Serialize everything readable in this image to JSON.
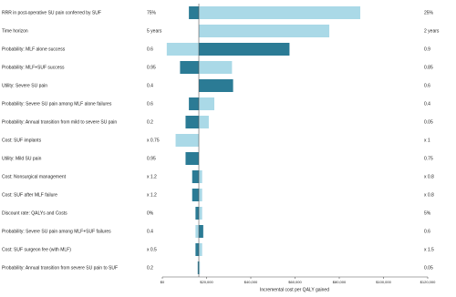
{
  "chart_data": {
    "type": "tornado",
    "x_label": "Incremental cost per QALY gained",
    "categories": [
      "RRR in post-operative SU pain conferred by SUF",
      "Time horizon",
      "Probability: MLF alone success",
      "Probability: MLF+SUF success",
      "Utility: Severe SU pain",
      "Probability: Severe SU pain among MLF alone failures",
      "Probability: Annual transition from mild to severe SU pain",
      "Cost: SUF implants",
      "Utility: Mild SU pain",
      "Cost: Nonsurgical management",
      "Cost: SUF after MLF failure",
      "Discount rate: QALYs and Costs",
      "Probability: Severe SU pain among MLF+SUF failures",
      "Cost: SUF surgeon fee (with MLF)",
      "Probability: Annual transition from severe SU pain to SUF"
    ],
    "low_labels": [
      "75%",
      "5 years",
      "0.6",
      "0.95",
      "0.4",
      "0.6",
      "0.2",
      "x 0.75",
      "0.95",
      "x 1.2",
      "x 1.2",
      "0%",
      "0.4",
      "x 0.5",
      "0.2"
    ],
    "high_labels": [
      "25%",
      "2 years",
      "0.9",
      "0.85",
      "0.6",
      "0.4",
      "0.05",
      "x 1",
      "0.75",
      "x 0.8",
      "x 0.8",
      "5%",
      "0.6",
      "x 1.5",
      "0.05"
    ],
    "low_values": [
      12000,
      16500,
      57500,
      8000,
      32000,
      12000,
      10500,
      16500,
      10500,
      13500,
      13500,
      15000,
      18500,
      15000,
      16000
    ],
    "high_values": [
      89500,
      75500,
      2000,
      31500,
      16500,
      23500,
      21000,
      6000,
      16500,
      18000,
      18000,
      18000,
      15000,
      18000,
      17000
    ],
    "low_color": "#2b7b95",
    "high_color": "#aad9e7",
    "base_value": 16500,
    "xlim": [
      0,
      120000
    ],
    "xticks": [
      {
        "value": 0,
        "label": "$0"
      },
      {
        "value": 20000,
        "label": "$20,000"
      },
      {
        "value": 40000,
        "label": "$40,000"
      },
      {
        "value": 60000,
        "label": "$60,000"
      },
      {
        "value": 80000,
        "label": "$80,000"
      },
      {
        "value": 100000,
        "label": "$100,000"
      },
      {
        "value": 120000,
        "label": "$120,000"
      }
    ]
  }
}
